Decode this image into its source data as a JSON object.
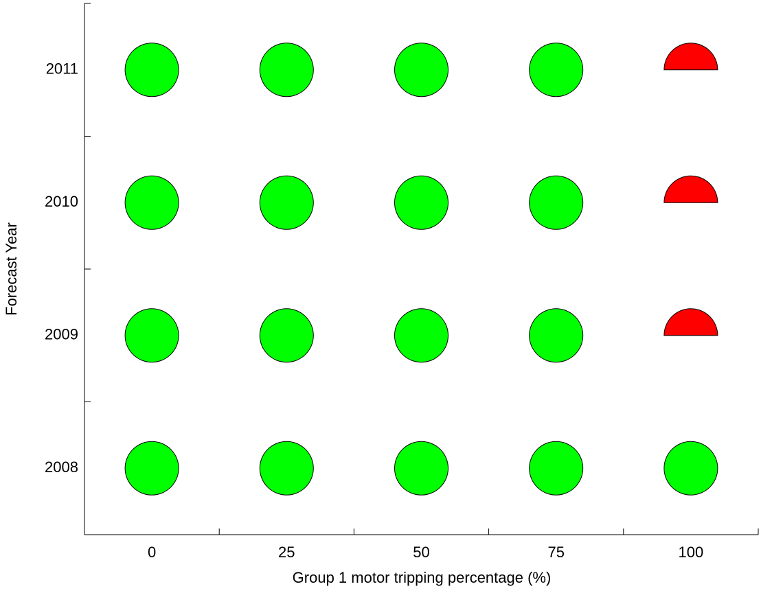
{
  "chart_data": {
    "type": "scatter",
    "xlabel": "Group 1 motor tripping percentage (%)",
    "ylabel": "Forecast Year",
    "xlim": [
      -12.5,
      112.5
    ],
    "xticks": [
      0,
      25,
      50,
      75,
      100
    ],
    "xminor_ticks": [
      12.5,
      37.5,
      62.5,
      87.5
    ],
    "ylim": [
      2007.5,
      2011.5
    ],
    "yticks": [
      2008,
      2009,
      2010,
      2011
    ],
    "yminor_ticks": [
      2008.5,
      2009.5,
      2010.5
    ],
    "series": [
      {
        "color": "#00ff00",
        "marker": "circle",
        "x": [
          0,
          25,
          50,
          75,
          100,
          0,
          25,
          50,
          75,
          0,
          25,
          50,
          75,
          0,
          25,
          50,
          75
        ],
        "y": [
          2008,
          2008,
          2008,
          2008,
          2008,
          2009,
          2009,
          2009,
          2009,
          2010,
          2010,
          2010,
          2010,
          2011,
          2011,
          2011,
          2011
        ]
      },
      {
        "color": "#ff0000",
        "marker": "half-circle",
        "x": [
          100,
          100,
          100
        ],
        "y": [
          2009,
          2010,
          2011
        ]
      }
    ]
  }
}
